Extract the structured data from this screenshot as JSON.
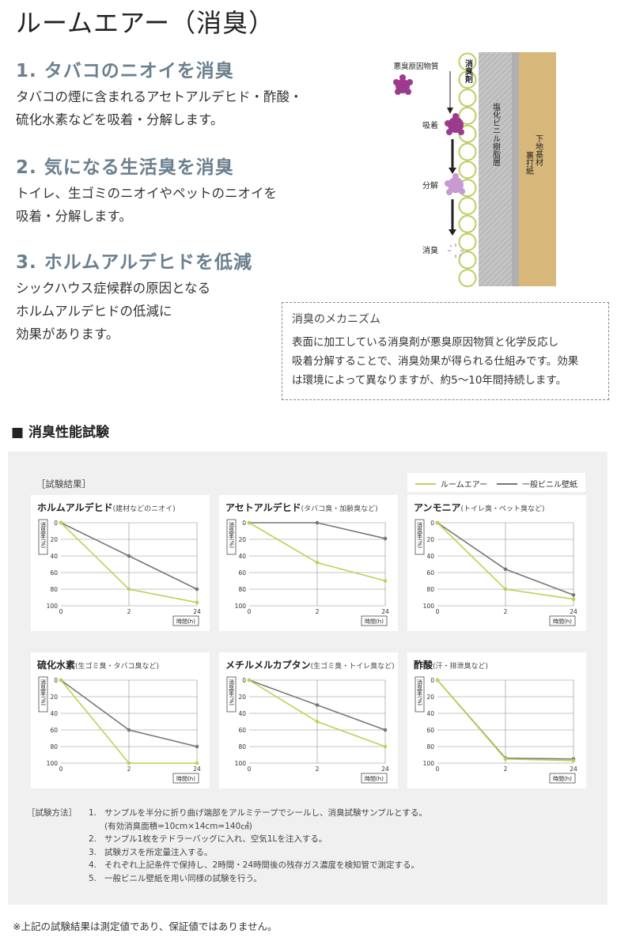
{
  "page": {
    "title": "ルームエアー（消臭）"
  },
  "features": [
    {
      "heading": "1. タバコのニオイを消臭",
      "lines": [
        "タバコの煙に含まれるアセトアルデヒド・酢酸・",
        "硫化水素などを吸着・分解します。"
      ]
    },
    {
      "heading": "2. 気になる生活臭を消臭",
      "lines": [
        "トイレ、生ゴミのニオイやペットのニオイを",
        "吸着・分解します。"
      ]
    },
    {
      "heading": "3. ホルムアルデヒドを低減",
      "lines": [
        "シックハウス症候群の原因となる",
        "ホルムアルデヒドの低減に",
        "効果があります。"
      ]
    }
  ],
  "diagram": {
    "labels": {
      "malodor": "悪臭原因物質",
      "adsorb": "吸着",
      "decompose": "分解",
      "deodorize": "消臭"
    },
    "layers": {
      "agent": "消臭剤",
      "pvc": "塩化ビニル樹脂層",
      "backing": "裏打紙",
      "substrate": "下地基材"
    },
    "colors": {
      "agent_circle": "#b8d060",
      "molecule_dark": "#9e3a8e",
      "molecule_light": "#c79ad0",
      "substrate": "#d8b87a"
    }
  },
  "mechanism": {
    "title": "消臭のメカニズム",
    "lines": [
      "表面に加工している消臭剤が悪臭原因物質と化学反応し",
      "吸着分解することで、消臭効果が得られる仕組みです。効果",
      "は環境によって異なりますが、約5～10年間持続します。"
    ]
  },
  "section": {
    "title": "■ 消臭性能試験"
  },
  "results": {
    "label": "［試験結果］"
  },
  "legend": {
    "items": [
      {
        "name": "ルームエアー",
        "color": "#b8d456"
      },
      {
        "name": "一般ビニル壁紙",
        "color": "#777777"
      }
    ]
  },
  "chart_common": {
    "ylabel": "消臭率(%)",
    "xlabel": "時間(h)"
  },
  "chart_data": [
    {
      "type": "line",
      "title": "ホルムアルデヒド",
      "subtitle": "(建材などのニオイ)",
      "x": [
        "0",
        "2",
        "24"
      ],
      "yticks": [
        "0",
        "20",
        "40",
        "60",
        "80",
        "100"
      ],
      "ylim": [
        0,
        100
      ],
      "y_inverted": true,
      "grid": true,
      "series": [
        {
          "name": "ルームエアー",
          "values": [
            0,
            80,
            96
          ]
        },
        {
          "name": "一般ビニル壁紙",
          "values": [
            0,
            40,
            80
          ]
        }
      ]
    },
    {
      "type": "line",
      "title": "アセトアルデヒド",
      "subtitle": "(タバコ臭・加齢臭など)",
      "x": [
        "0",
        "2",
        "24"
      ],
      "yticks": [
        "0",
        "20",
        "40",
        "60",
        "80",
        "100"
      ],
      "ylim": [
        0,
        100
      ],
      "y_inverted": true,
      "grid": true,
      "series": [
        {
          "name": "ルームエアー",
          "values": [
            0,
            48,
            70
          ]
        },
        {
          "name": "一般ビニル壁紙",
          "values": [
            0,
            0,
            19
          ]
        }
      ]
    },
    {
      "type": "line",
      "title": "アンモニア",
      "subtitle": "(トイレ臭・ペット臭など)",
      "x": [
        "0",
        "2",
        "24"
      ],
      "yticks": [
        "0",
        "20",
        "40",
        "60",
        "80",
        "100"
      ],
      "ylim": [
        0,
        100
      ],
      "y_inverted": true,
      "grid": true,
      "series": [
        {
          "name": "ルームエアー",
          "values": [
            0,
            80,
            92
          ]
        },
        {
          "name": "一般ビニル壁紙",
          "values": [
            0,
            56,
            87
          ]
        }
      ]
    },
    {
      "type": "line",
      "title": "硫化水素",
      "subtitle": "(生ゴミ臭・タバコ臭など)",
      "x": [
        "0",
        "2",
        "24"
      ],
      "yticks": [
        "0",
        "20",
        "40",
        "60",
        "80",
        "100"
      ],
      "ylim": [
        0,
        100
      ],
      "y_inverted": true,
      "grid": true,
      "series": [
        {
          "name": "ルームエアー",
          "values": [
            0,
            100,
            100
          ]
        },
        {
          "name": "一般ビニル壁紙",
          "values": [
            0,
            60,
            80
          ]
        }
      ]
    },
    {
      "type": "line",
      "title": "メチルメルカプタン",
      "subtitle": "(生ゴミ臭・トイレ臭など)",
      "x": [
        "0",
        "2",
        "24"
      ],
      "yticks": [
        "0",
        "20",
        "40",
        "60",
        "80",
        "100"
      ],
      "ylim": [
        0,
        100
      ],
      "y_inverted": true,
      "grid": true,
      "series": [
        {
          "name": "ルームエアー",
          "values": [
            0,
            50,
            80
          ]
        },
        {
          "name": "一般ビニル壁紙",
          "values": [
            0,
            30,
            60
          ]
        }
      ]
    },
    {
      "type": "line",
      "title": "酢酸",
      "subtitle": "(汗・排泄臭など)",
      "x": [
        "0",
        "2",
        "24"
      ],
      "yticks": [
        "0",
        "20",
        "40",
        "60",
        "80",
        "100"
      ],
      "ylim": [
        0,
        100
      ],
      "y_inverted": true,
      "grid": true,
      "series": [
        {
          "name": "ルームエアー",
          "values": [
            0,
            95,
            97
          ]
        },
        {
          "name": "一般ビニル壁紙",
          "values": [
            0,
            94,
            95
          ]
        }
      ]
    }
  ],
  "method": {
    "label": "［試験方法］",
    "items": [
      {
        "num": "1.",
        "text": "サンプルを半分に折り曲げ端部をアルミテープでシールし、消臭試験サンプルとする。"
      },
      {
        "num": "",
        "text": "(有効消臭面積=10cm×14cm=140㎠)"
      },
      {
        "num": "2.",
        "text": "サンプル1枚をテドラーバッグに入れ、空気1Lを注入する。"
      },
      {
        "num": "3.",
        "text": "試験ガスを所定量注入する。"
      },
      {
        "num": "4.",
        "text": "それぞれ上記条件で保持し、2時間・24時間後の残存ガス濃度を検知管で測定する。"
      },
      {
        "num": "5.",
        "text": "一般ビニル壁紙を用い同様の試験を行う。"
      }
    ]
  },
  "footnote": "※上記の試験結果は測定値であり、保証値ではありません。"
}
